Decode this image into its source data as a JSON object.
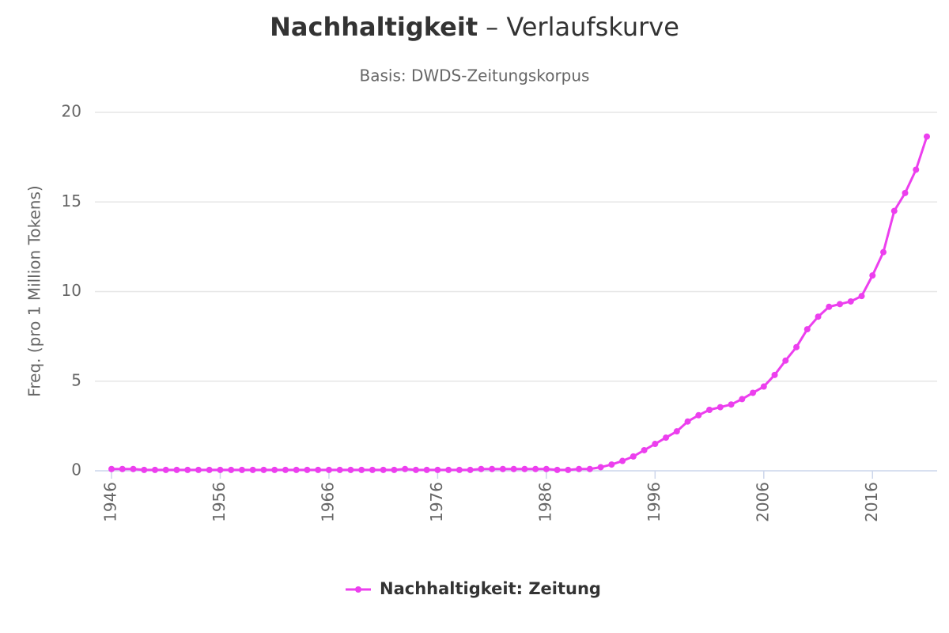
{
  "chart_data": {
    "type": "line",
    "title": [
      "Nachhaltigkeit",
      "– Verlaufskurve"
    ],
    "subtitle": "Basis: DWDS-Zeitungskorpus",
    "y_label": "Freq. (pro 1 Million Tokens)",
    "x": [
      1946,
      1947,
      1948,
      1949,
      1950,
      1951,
      1952,
      1953,
      1954,
      1955,
      1956,
      1957,
      1958,
      1959,
      1960,
      1961,
      1962,
      1963,
      1964,
      1965,
      1966,
      1967,
      1968,
      1969,
      1970,
      1971,
      1972,
      1973,
      1974,
      1975,
      1976,
      1977,
      1978,
      1979,
      1980,
      1981,
      1982,
      1983,
      1984,
      1985,
      1986,
      1987,
      1988,
      1989,
      1990,
      1991,
      1992,
      1993,
      1994,
      1995,
      1996,
      1997,
      1998,
      1999,
      2000,
      2001,
      2002,
      2003,
      2004,
      2005,
      2006,
      2007,
      2008,
      2009,
      2010,
      2011,
      2012,
      2013,
      2014,
      2015,
      2016,
      2017,
      2018,
      2019,
      2020,
      2021
    ],
    "series": [
      {
        "name": "Nachhaltigkeit: Zeitung",
        "color": "#ec3fee",
        "values": [
          0.1,
          0.1,
          0.1,
          0.05,
          0.05,
          0.05,
          0.05,
          0.05,
          0.05,
          0.05,
          0.05,
          0.05,
          0.05,
          0.05,
          0.05,
          0.05,
          0.05,
          0.05,
          0.05,
          0.05,
          0.05,
          0.05,
          0.05,
          0.05,
          0.05,
          0.05,
          0.05,
          0.1,
          0.05,
          0.05,
          0.05,
          0.05,
          0.05,
          0.05,
          0.1,
          0.1,
          0.1,
          0.1,
          0.1,
          0.1,
          0.1,
          0.05,
          0.05,
          0.1,
          0.1,
          0.2,
          0.35,
          0.55,
          0.8,
          1.15,
          1.5,
          1.85,
          2.2,
          2.75,
          3.1,
          3.4,
          3.55,
          3.7,
          4.0,
          4.35,
          4.7,
          5.35,
          6.15,
          6.9,
          7.9,
          8.6,
          9.15,
          9.3,
          9.45,
          9.75,
          10.9,
          12.2,
          14.5,
          15.5,
          16.8,
          18.65
        ]
      }
    ],
    "xlim": [
      1946,
      2021
    ],
    "xticks": [
      1946,
      1956,
      1966,
      1976,
      1986,
      1996,
      2006,
      2016
    ],
    "ylim": [
      0,
      20
    ],
    "yticks": [
      0,
      5,
      10,
      15,
      20
    ],
    "grid": true,
    "legend": "bottom"
  }
}
